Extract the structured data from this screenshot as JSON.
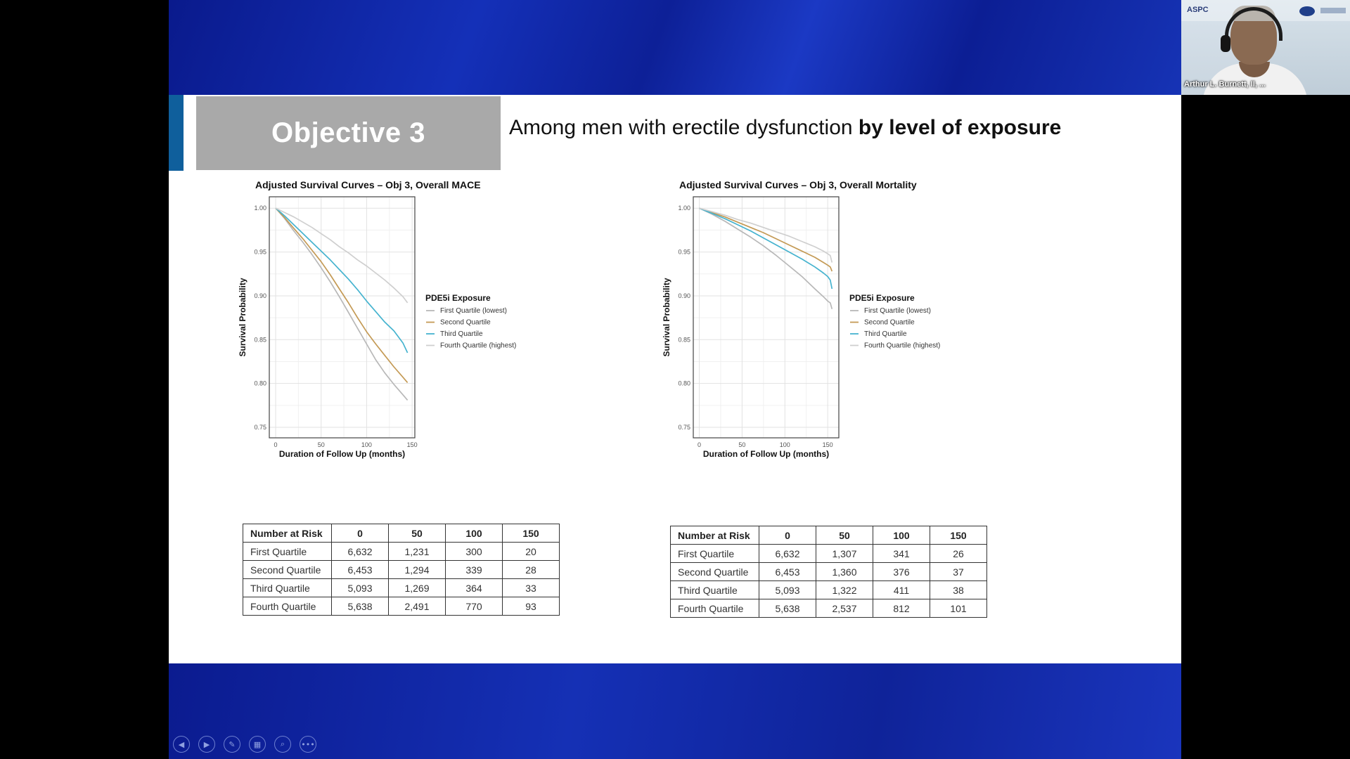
{
  "slide": {
    "objective_label": "Objective 3",
    "headline_plain": "Among men with erectile dysfunction ",
    "headline_bold": "by level of exposure"
  },
  "chart_data": [
    {
      "type": "line",
      "title": "Adjusted Survival Curves – Obj 3, Overall MACE",
      "xlabel": "Duration of Follow Up (months)",
      "ylabel": "Survival Probability",
      "xlim": [
        -7,
        153
      ],
      "ylim": [
        0.738,
        1.013
      ],
      "xticks": [
        0,
        50,
        100,
        150
      ],
      "yticks": [
        0.75,
        0.8,
        0.85,
        0.9,
        0.95,
        1.0
      ],
      "ytick_labels": [
        "0.75",
        "0.80",
        "0.85",
        "0.90",
        "0.95",
        "1.00"
      ],
      "grid": true,
      "legend_title": "PDE5i Exposure",
      "legend_position": "right",
      "series": [
        {
          "name": "First Quartile (lowest)",
          "color": "#b8b8b8",
          "x": [
            0,
            10,
            20,
            30,
            40,
            50,
            60,
            70,
            80,
            90,
            100,
            110,
            120,
            130,
            140,
            145
          ],
          "y": [
            1.0,
            0.988,
            0.974,
            0.961,
            0.947,
            0.932,
            0.916,
            0.899,
            0.881,
            0.863,
            0.845,
            0.827,
            0.812,
            0.799,
            0.787,
            0.781
          ]
        },
        {
          "name": "Second Quartile",
          "color": "#c49a55",
          "x": [
            0,
            10,
            20,
            30,
            40,
            50,
            60,
            70,
            80,
            90,
            100,
            110,
            120,
            130,
            140,
            145
          ],
          "y": [
            1.0,
            0.989,
            0.977,
            0.965,
            0.952,
            0.939,
            0.924,
            0.908,
            0.892,
            0.875,
            0.859,
            0.845,
            0.832,
            0.819,
            0.807,
            0.801
          ]
        },
        {
          "name": "Third Quartile",
          "color": "#45b3cf",
          "x": [
            0,
            10,
            20,
            30,
            40,
            50,
            60,
            70,
            80,
            90,
            100,
            110,
            120,
            130,
            140,
            145
          ],
          "y": [
            1.0,
            0.991,
            0.981,
            0.971,
            0.961,
            0.951,
            0.941,
            0.93,
            0.919,
            0.907,
            0.894,
            0.882,
            0.87,
            0.86,
            0.846,
            0.835
          ]
        },
        {
          "name": "Fourth Quartile (highest)",
          "color": "#cfcfcf",
          "x": [
            0,
            10,
            20,
            30,
            40,
            50,
            60,
            70,
            80,
            90,
            100,
            110,
            120,
            130,
            140,
            145
          ],
          "y": [
            1.0,
            0.995,
            0.99,
            0.984,
            0.978,
            0.971,
            0.964,
            0.956,
            0.949,
            0.941,
            0.934,
            0.926,
            0.918,
            0.909,
            0.899,
            0.892
          ]
        }
      ]
    },
    {
      "type": "line",
      "title": "Adjusted Survival Curves – Obj 3, Overall Mortality",
      "xlabel": "Duration of Follow Up (months)",
      "ylabel": "Survival Probability",
      "xlim": [
        -7,
        163
      ],
      "ylim": [
        0.738,
        1.013
      ],
      "xticks": [
        0,
        50,
        100,
        150
      ],
      "yticks": [
        0.75,
        0.8,
        0.85,
        0.9,
        0.95,
        1.0
      ],
      "ytick_labels": [
        "0.75",
        "0.80",
        "0.85",
        "0.90",
        "0.95",
        "1.00"
      ],
      "grid": true,
      "legend_title": "PDE5i Exposure",
      "legend_position": "right",
      "series": [
        {
          "name": "First Quartile (lowest)",
          "color": "#b8b8b8",
          "x": [
            0,
            15,
            30,
            45,
            60,
            75,
            90,
            105,
            120,
            135,
            145,
            150,
            153,
            155
          ],
          "y": [
            1.0,
            0.993,
            0.985,
            0.976,
            0.967,
            0.957,
            0.946,
            0.934,
            0.922,
            0.908,
            0.899,
            0.894,
            0.892,
            0.885
          ]
        },
        {
          "name": "Second Quartile",
          "color": "#c49a55",
          "x": [
            0,
            15,
            30,
            45,
            60,
            75,
            90,
            105,
            120,
            135,
            145,
            150,
            153,
            155
          ],
          "y": [
            1.0,
            0.995,
            0.99,
            0.984,
            0.978,
            0.972,
            0.965,
            0.958,
            0.951,
            0.944,
            0.938,
            0.935,
            0.933,
            0.928
          ]
        },
        {
          "name": "Third Quartile",
          "color": "#45b3cf",
          "x": [
            0,
            15,
            30,
            45,
            60,
            75,
            90,
            105,
            120,
            135,
            145,
            150,
            153,
            155
          ],
          "y": [
            1.0,
            0.994,
            0.988,
            0.981,
            0.974,
            0.966,
            0.958,
            0.95,
            0.942,
            0.933,
            0.926,
            0.922,
            0.918,
            0.908
          ]
        },
        {
          "name": "Fourth Quartile (highest)",
          "color": "#cfcfcf",
          "x": [
            0,
            15,
            30,
            45,
            60,
            75,
            90,
            105,
            120,
            135,
            145,
            150,
            153,
            155
          ],
          "y": [
            1.0,
            0.996,
            0.992,
            0.987,
            0.983,
            0.978,
            0.973,
            0.968,
            0.962,
            0.956,
            0.951,
            0.948,
            0.946,
            0.938
          ]
        }
      ]
    }
  ],
  "tables": [
    {
      "headers": [
        "Number at Risk",
        "0",
        "50",
        "100",
        "150"
      ],
      "rows": [
        [
          "First Quartile",
          "6,632",
          "1,231",
          "300",
          "20"
        ],
        [
          "Second Quartile",
          "6,453",
          "1,294",
          "339",
          "28"
        ],
        [
          "Third Quartile",
          "5,093",
          "1,269",
          "364",
          "33"
        ],
        [
          "Fourth Quartile",
          "5,638",
          "2,491",
          "770",
          "93"
        ]
      ]
    },
    {
      "headers": [
        "Number at Risk",
        "0",
        "50",
        "100",
        "150"
      ],
      "rows": [
        [
          "First Quartile",
          "6,632",
          "1,307",
          "341",
          "26"
        ],
        [
          "Second Quartile",
          "6,453",
          "1,360",
          "376",
          "37"
        ],
        [
          "Third Quartile",
          "5,093",
          "1,322",
          "411",
          "38"
        ],
        [
          "Fourth Quartile",
          "5,638",
          "2,537",
          "812",
          "101"
        ]
      ]
    }
  ],
  "controls": [
    {
      "name": "previous-slide-button",
      "glyph": "◀"
    },
    {
      "name": "next-slide-button",
      "glyph": "▶"
    },
    {
      "name": "pen-tool-button",
      "glyph": "✎"
    },
    {
      "name": "see-all-slides-button",
      "glyph": "▦"
    },
    {
      "name": "zoom-button",
      "glyph": "⌕"
    },
    {
      "name": "more-options-button",
      "glyph": "•••"
    }
  ],
  "video": {
    "participant_name": "Arthur L. Burnett, II, ...",
    "logo_text": "ASPC"
  }
}
